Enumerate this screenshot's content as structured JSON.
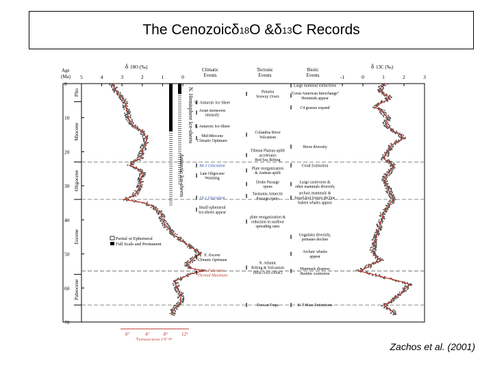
{
  "slide": {
    "title_prefix": "The Cenozoic ",
    "delta": "δ",
    "sup18": "18",
    "o_part": "O & ",
    "sup13": "13",
    "c_part": "C Records",
    "citation": "Zachos et al. (2001)"
  },
  "chart_data": {
    "type": "line",
    "title": "",
    "age_axis": {
      "label": [
        "Age",
        "(Ma)"
      ],
      "ticks": [
        0,
        10,
        20,
        30,
        40,
        50,
        60,
        70
      ],
      "range": [
        0,
        70
      ]
    },
    "d18O": {
      "label": "δ18O (‰)",
      "ticks": [
        5,
        4,
        3,
        2,
        1,
        0
      ],
      "range": [
        5,
        0
      ],
      "age": [
        0,
        1,
        2,
        3,
        4,
        5,
        6,
        7,
        8,
        10,
        12,
        13,
        14,
        15,
        16,
        17,
        18,
        20,
        22,
        23,
        24,
        25,
        26,
        27,
        28,
        30,
        32,
        33,
        34,
        35,
        36,
        38,
        40,
        42,
        44,
        46,
        48,
        50,
        51,
        52,
        53,
        54,
        55,
        56,
        57,
        58,
        60,
        62,
        64,
        66,
        67,
        68
      ],
      "value": [
        3.5,
        3.4,
        3.3,
        3.2,
        3.0,
        2.9,
        2.8,
        2.8,
        2.75,
        2.7,
        2.5,
        2.3,
        2.0,
        1.9,
        1.8,
        1.8,
        1.9,
        2.0,
        2.1,
        2.5,
        2.6,
        2.2,
        2.0,
        2.0,
        2.1,
        2.1,
        2.3,
        2.4,
        2.9,
        1.9,
        1.5,
        1.1,
        1.0,
        0.8,
        0.5,
        0.1,
        -0.4,
        -0.9,
        -0.6,
        -0.4,
        -0.2,
        -0.3,
        -1.0,
        -0.3,
        0.0,
        0.4,
        0.3,
        0.1,
        0.1,
        0.4,
        0.5,
        0.5
      ]
    },
    "d13C": {
      "label": "δ13C (‰)",
      "ticks": [
        -1,
        0,
        1,
        2,
        3
      ],
      "range": [
        -1,
        3
      ],
      "age": [
        0,
        1,
        2,
        3,
        4,
        5,
        6,
        7,
        8,
        10,
        12,
        14,
        15,
        16,
        17,
        18,
        20,
        22,
        24,
        26,
        28,
        30,
        32,
        34,
        36,
        38,
        40,
        42,
        44,
        46,
        48,
        50,
        51,
        52,
        53,
        54,
        55,
        56,
        57,
        58,
        59,
        60,
        62,
        63,
        64,
        65,
        66,
        67,
        68
      ],
      "value": [
        1.1,
        0.9,
        0.8,
        1.0,
        1.3,
        1.1,
        0.8,
        0.6,
        0.9,
        1.2,
        1.1,
        1.5,
        1.8,
        2.0,
        1.7,
        1.4,
        1.2,
        1.0,
        1.5,
        1.3,
        1.0,
        1.2,
        1.3,
        1.5,
        1.2,
        1.0,
        0.9,
        0.8,
        0.7,
        0.6,
        0.5,
        0.5,
        0.7,
        0.9,
        0.4,
        0.2,
        -0.2,
        0.5,
        1.1,
        1.8,
        2.3,
        2.1,
        1.8,
        1.5,
        1.4,
        1.0,
        1.2,
        1.5,
        1.5
      ]
    },
    "temperature_axis": {
      "label": "Temperature (°C)*",
      "ticks": [
        "0°",
        "4°",
        "8°",
        "12°"
      ]
    },
    "epochs": [
      {
        "name": "Plio",
        "from": 0,
        "to": 5.3
      },
      {
        "name": "Miocene",
        "from": 5.3,
        "to": 23
      },
      {
        "name": "Oligocene",
        "from": 23,
        "to": 34
      },
      {
        "name": "Eocene",
        "from": 34,
        "to": 56
      },
      {
        "name": "Paleocene",
        "from": 56,
        "to": 65
      }
    ],
    "boundaries": [
      23,
      34,
      55,
      65
    ],
    "ice_sheets": [
      {
        "label": "N. Hemisphere Ice-sheets",
        "from": 0,
        "to": 3,
        "from_sparse": 3,
        "to_sparse": 30
      },
      {
        "label": "Antarctic Ice-sheets",
        "from": 0,
        "to": 14,
        "from_sparse": 14,
        "to_sparse": 36
      }
    ],
    "legend": [
      "Partial or Ephemeral",
      "Full Scale and Permanent"
    ],
    "climatic_events_header": [
      "Climatic",
      "Events"
    ],
    "tectonic_events_header": [
      "Tectonic",
      "Events"
    ],
    "biotic_events_header": [
      "Biotic",
      "Events"
    ],
    "climatic_events": [
      {
        "age": 5.5,
        "lines": [
          "W. Antarctic Ice Sheet"
        ],
        "style": "normal"
      },
      {
        "age": 8.5,
        "lines": [
          "Asian monsoons",
          "intensify"
        ],
        "style": "normal"
      },
      {
        "age": 12.5,
        "lines": [
          "E. Antarctic Ice-Sheet"
        ],
        "style": "normal"
      },
      {
        "age": 16,
        "lines": [
          "Mid-Miocene",
          "Climatic Optimum"
        ],
        "style": "normal"
      },
      {
        "age": 24,
        "lines": [
          "Mi-1 Glaciation"
        ],
        "style": "blue"
      },
      {
        "age": 27,
        "lines": [
          "Late Oligocene",
          "Warming"
        ],
        "style": "normal"
      },
      {
        "age": 33.5,
        "lines": [
          "Oi-1 Glaciation"
        ],
        "style": "blue"
      },
      {
        "age": 37,
        "lines": [
          "Small ephemeral",
          "Ice-sheets appear"
        ],
        "style": "normal"
      },
      {
        "age": 51,
        "lines": [
          "E. Eocene",
          "Climatic Optimum"
        ],
        "style": "italic"
      },
      {
        "age": 55.5,
        "lines": [
          "Late Paleocene",
          "Thermal Maximum"
        ],
        "style": "red"
      }
    ],
    "tectonic_events": [
      {
        "age": 3,
        "lines": [
          "Panama",
          "Seaway closes"
        ]
      },
      {
        "age": 15,
        "lines": [
          "Columbia River",
          "Volcanism"
        ]
      },
      {
        "age": 21,
        "lines": [
          "Tibetan Plateau uplift",
          "accelerates",
          "Red Sea Rifting"
        ]
      },
      {
        "age": 25.5,
        "lines": [
          "Plate reorganization",
          "& Andean uplift"
        ]
      },
      {
        "age": 29.5,
        "lines": [
          "Drake Passage",
          "opens"
        ]
      },
      {
        "age": 33,
        "lines": [
          "Tasmania Antarctic",
          "Passage opens"
        ]
      },
      {
        "age": 40.5,
        "lines": [
          "plate reorganization &",
          "reduction in seafloor",
          "spreading rates"
        ]
      },
      {
        "age": 54,
        "lines": [
          "N. Atlantic",
          "Rifting & Volcanism",
          "India-Asia contact"
        ]
      },
      {
        "age": 65,
        "lines": [
          "Deccan Traps"
        ]
      }
    ],
    "biotic_events": [
      {
        "age": 0.5,
        "lines": [
          "Large mammal extinctions"
        ]
      },
      {
        "age": 3.5,
        "lines": [
          "\"Great American Interchange\"",
          "Hominids appear"
        ]
      },
      {
        "age": 7,
        "lines": [
          "C4 grasses expand"
        ]
      },
      {
        "age": 18.5,
        "lines": [
          "Horse diversity"
        ]
      },
      {
        "age": 24,
        "lines": [
          "Coral Extinction"
        ]
      },
      {
        "age": 29.5,
        "lines": [
          "Large carnivores &",
          "other mammals diversify"
        ]
      },
      {
        "age": 33.5,
        "lines": [
          "archaic mammals &",
          "broad-leaf forests decline",
          "baleen whales appear"
        ]
      },
      {
        "age": 45,
        "lines": [
          "Ungulates diversify,",
          "primates decline"
        ]
      },
      {
        "age": 50,
        "lines": [
          "Archaic whales",
          "appear"
        ]
      },
      {
        "age": 55,
        "lines": [
          "Mammals disperse",
          "Benthic extinction"
        ]
      },
      {
        "age": 65,
        "lines": [
          "K-T Mass Extinctions"
        ]
      }
    ],
    "colors": {
      "data_points": "#555555",
      "d18O_curve": "#c0392b",
      "d13C_curve": "#c0392b",
      "blue_event": "#2a4fa8",
      "red_event": "#c0392b"
    }
  }
}
